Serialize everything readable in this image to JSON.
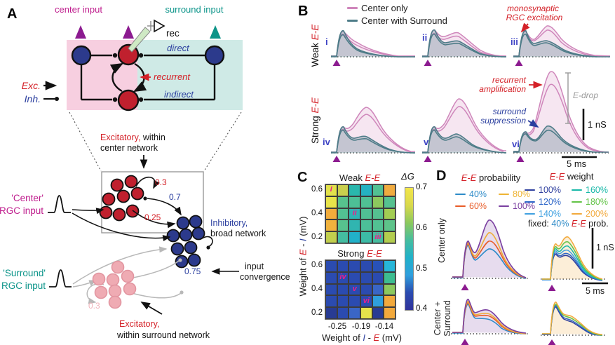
{
  "colors": {
    "magenta": "#bf1d8d",
    "teal": "#0b9489",
    "red": "#d42128",
    "blue": "#2b3f9f",
    "pink_trace": "#cf86bb",
    "teal_trace": "#4e7c88",
    "purple_marker": "#8c1b90",
    "roman_blue": "#3d43c4",
    "heat_mark": "#ec1e8c",
    "gray_ann": "#9a9a9a",
    "neuron_red": "#c0202e",
    "neuron_blue": "#2c3a8c",
    "neuron_pale": "#efabb3",
    "box_pink": "#f7cfe0",
    "box_teal": "#cfeae6"
  },
  "panel_a": {
    "label": "A",
    "center_input": "center input",
    "surround_input": "surround input",
    "rec": "rec",
    "direct": "direct",
    "recurrent": "recurrent",
    "indirect": "indirect",
    "exc": "Exc.",
    "inh": "Inh.",
    "exc_center_red": "Excitatory,",
    "exc_center_black": " within",
    "exc_center_line2": "center network",
    "center_rgc_line1": "'Center'",
    "center_rgc_line2": "RGC input",
    "inhibitory_blue": "Inhibitory,",
    "inhibitory_black": "broad network",
    "conv_line1": "input",
    "conv_line2": "convergence",
    "surround_rgc_line1": "'Surround'",
    "surround_rgc_line2": "RGC input",
    "exc_surround_red": "Excitatory,",
    "exc_surround_line2": "within surround network",
    "w_center_self": "0.3",
    "w_ei_top": "0.7",
    "w_ei_bottom": "0.25",
    "w_conv": "0.75",
    "w_surround_self": "0.3"
  },
  "panel_b": {
    "label": "B",
    "legend": [
      {
        "label": "Center only",
        "color": "#cf86bb"
      },
      {
        "label": "Center with Surround",
        "color": "#4e7c88"
      }
    ],
    "weak": "Weak ",
    "strong": "Strong ",
    "ee": "E-E",
    "traces": [
      "i",
      "ii",
      "iii",
      "iv",
      "v",
      "vi"
    ],
    "ann_mono_1": "monosynaptic",
    "ann_mono_2": "RGC excitation",
    "ann_rec_1": "recurrent",
    "ann_rec_2": "amplification",
    "ann_sur_1": "surround",
    "ann_sur_2": "suppression",
    "ann_edrop": "E-drop",
    "scale_v": "1 nS",
    "scale_h": "5 ms"
  },
  "panel_c": {
    "label": "C",
    "weak": "Weak ",
    "strong": "Strong ",
    "ee": "E-E",
    "cb_label": "ΔG",
    "cb_ticks": [
      "0.7",
      "0.6",
      "0.5",
      "0.4"
    ],
    "y_ticks": [
      "0.6",
      "0.4",
      "0.2"
    ],
    "x_ticks": [
      "-0.25",
      "-0.19",
      "-0.14"
    ],
    "ylabel_pre": "Weight of ",
    "ylabel_e": "E",
    "ylabel_mid": " - ",
    "ylabel_i": "I",
    "ylabel_post": " (mV)",
    "xlabel_pre": "Weight of ",
    "xlabel_i": "I",
    "xlabel_mid": " - ",
    "xlabel_e": "E",
    "xlabel_post": " (mV)"
  },
  "panel_d": {
    "label": "D",
    "title_prob_ee": "E-E",
    "title_prob_rest": " probability",
    "title_w_ee": "E-E",
    "title_w_rest": " weight",
    "prob_legend": [
      {
        "label": "40%",
        "color": "#2e8bc8"
      },
      {
        "label": "80%",
        "color": "#eeb434"
      },
      {
        "label": "60%",
        "color": "#e85c28"
      },
      {
        "label": "100%",
        "color": "#7a3fa0"
      }
    ],
    "weight_legend": [
      {
        "label": "100%",
        "color": "#2d3e9e"
      },
      {
        "label": "160%",
        "color": "#17b8a8"
      },
      {
        "label": "120%",
        "color": "#2d66c8"
      },
      {
        "label": "180%",
        "color": "#62c346"
      },
      {
        "label": "140%",
        "color": "#3fa0e0"
      },
      {
        "label": "200%",
        "color": "#f2a93b"
      }
    ],
    "fixed_pre": "fixed: ",
    "fixed_pct": "40% ",
    "fixed_ee": "E-E",
    "fixed_post": " prob.",
    "row1": "Center only",
    "row2_l1": "Center +",
    "row2_l2": "Surround",
    "scale_v": "1 nS",
    "scale_h": "5 ms"
  },
  "chart_data": [
    {
      "type": "heatmap",
      "title": "Weak E-E",
      "xlabel": "Weight of I - E (mV)",
      "ylabel": "Weight of E - I (mV)",
      "x_ticks": [
        "-0.25",
        "-0.19",
        "-0.14"
      ],
      "y_ticks": [
        "0.6",
        "0.4",
        "0.2"
      ],
      "colorbar_label": "ΔG",
      "colorbar_range": [
        0.4,
        0.7
      ],
      "values": [
        [
          0.68,
          0.64,
          0.58,
          0.57,
          0.6,
          0.66
        ],
        [
          0.67,
          0.6,
          0.6,
          0.6,
          0.62,
          0.6
        ],
        [
          0.66,
          0.6,
          0.57,
          0.6,
          0.6,
          0.63
        ],
        [
          0.66,
          0.6,
          0.58,
          0.6,
          0.6,
          0.6
        ],
        [
          0.64,
          0.59,
          0.55,
          0.58,
          0.59,
          0.64
        ]
      ],
      "cell_colors": [
        [
          "#e3e24b",
          "#c9cf4e",
          "#2ab7ad",
          "#25b2c1",
          "#52c193",
          "#f0ab3f"
        ],
        [
          "#e8e44a",
          "#57c28e",
          "#4dbf96",
          "#50c094",
          "#8cc95e",
          "#55c190"
        ],
        [
          "#f2ac3c",
          "#52c193",
          "#2eb4b4",
          "#50c094",
          "#55c190",
          "#a3cd53"
        ],
        [
          "#f0b23e",
          "#57c28e",
          "#30b5b0",
          "#4cbf98",
          "#52c193",
          "#5ec38a"
        ],
        [
          "#c2cf4d",
          "#44bda1",
          "#21b1c9",
          "#3cbba6",
          "#46bd9f",
          "#b3cd4f"
        ]
      ],
      "marks": [
        {
          "row": 0,
          "col": 0,
          "label": "i"
        },
        {
          "row": 2,
          "col": 2,
          "label": "ii"
        },
        {
          "row": 4,
          "col": 4,
          "label": "iii"
        }
      ]
    },
    {
      "type": "heatmap",
      "title": "Strong E-E",
      "xlabel": "Weight of I - E (mV)",
      "ylabel": "Weight of E - I (mV)",
      "x_ticks": [
        "-0.25",
        "-0.19",
        "-0.14"
      ],
      "y_ticks": [
        "0.6",
        "0.4",
        "0.2"
      ],
      "colorbar_label": "ΔG",
      "colorbar_range": [
        0.4,
        0.7
      ],
      "values": [
        [
          0.44,
          0.44,
          0.44,
          0.44,
          0.45,
          0.54
        ],
        [
          0.44,
          0.44,
          0.44,
          0.44,
          0.44,
          0.57
        ],
        [
          0.44,
          0.44,
          0.44,
          0.44,
          0.47,
          0.61
        ],
        [
          0.44,
          0.44,
          0.44,
          0.44,
          0.53,
          0.66
        ],
        [
          0.42,
          0.44,
          0.47,
          0.68,
          0.42,
          0.66
        ]
      ],
      "cell_colors": [
        [
          "#2b4bb0",
          "#2b4bb0",
          "#2b4bb0",
          "#2b4bb0",
          "#2852b8",
          "#27b6d8"
        ],
        [
          "#2b4bb0",
          "#2b4bb0",
          "#2b4bb0",
          "#2b4bb0",
          "#2b4bb0",
          "#3dbd90"
        ],
        [
          "#2b4bb0",
          "#2b4bb0",
          "#2b4bb0",
          "#2b4bb0",
          "#3a66c6",
          "#8cc95e"
        ],
        [
          "#2b4bb0",
          "#2b4bb0",
          "#2b4bb0",
          "#2b4bb0",
          "#2f9fdd",
          "#f2a93c"
        ],
        [
          "#283b93",
          "#2b4bb0",
          "#3a66c6",
          "#e6e34b",
          "#283b93",
          "#f2a93c"
        ]
      ],
      "marks": [
        {
          "row": 1,
          "col": 1,
          "label": "iv"
        },
        {
          "row": 2,
          "col": 2,
          "label": "v"
        },
        {
          "row": 3,
          "col": 3,
          "label": "vi"
        }
      ]
    }
  ]
}
